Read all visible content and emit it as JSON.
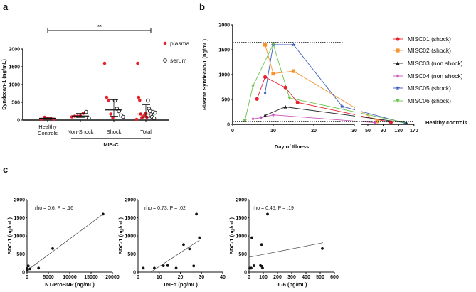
{
  "panel_labels": {
    "a": "a",
    "b": "b",
    "c": "c"
  },
  "chart_data": [
    {
      "panel": "a",
      "type": "scatter",
      "ylabel": "Syndecan-1 (ng/mL)",
      "ylim": [
        0,
        2000
      ],
      "yticks": [
        0,
        500,
        1000,
        1500,
        2000
      ],
      "categories": [
        "Healthy Controls",
        "Non-Shock",
        "Shock",
        "Total"
      ],
      "group_label": "MIS-C",
      "significance": "**",
      "legend": [
        {
          "name": "plasma",
          "color": "#e8202a",
          "filled": true
        },
        {
          "name": "serum",
          "color": "#111111",
          "filled": false
        }
      ],
      "groups": [
        {
          "plasma": [
            20,
            80,
            50,
            55,
            25
          ],
          "serum": [],
          "median": 50,
          "iqr": [
            25,
            60
          ]
        },
        {
          "plasma": [
            90,
            110,
            110,
            120,
            190
          ],
          "serum": [
            230,
            50
          ],
          "median": 115,
          "iqr": [
            75,
            190
          ]
        },
        {
          "plasma": [
            1600,
            640,
            560,
            170,
            70
          ],
          "serum": [
            550,
            320,
            250,
            130,
            90
          ],
          "median": 285,
          "iqr": [
            110,
            570
          ]
        },
        {
          "plasma": [
            20,
            1600,
            640,
            560,
            170,
            70,
            90,
            110,
            120,
            190,
            80
          ],
          "serum": [
            550,
            320,
            250,
            130,
            90,
            230,
            50,
            210
          ],
          "median": 170,
          "iqr": [
            80,
            430
          ]
        }
      ]
    },
    {
      "panel": "b",
      "type": "line",
      "xlabel": "Day of Illness",
      "ylabel": "Plasma Syndecan-1 (ng/mL)",
      "ylim": [
        0,
        2000
      ],
      "yticks": [
        0,
        500,
        1000,
        1500,
        2000
      ],
      "xticks": [
        0,
        10,
        20,
        30,
        50,
        90,
        130,
        170
      ],
      "x_axis_break": [
        30,
        33
      ],
      "reference_lines": [
        {
          "value": 1650,
          "label": ""
        },
        {
          "value": 50,
          "label": "Healthy controls"
        }
      ],
      "series": [
        {
          "name": "MISC01 (shock)",
          "color": "#e8202a",
          "marker": "circle",
          "x": [
            6,
            8,
            13,
            16,
            110
          ],
          "y": [
            510,
            950,
            740,
            440,
            40
          ]
        },
        {
          "name": "MISC02 (shock)",
          "color": "#f5932e",
          "marker": "square",
          "x": [
            8,
            10,
            15,
            75
          ],
          "y": [
            1600,
            1020,
            1070,
            60
          ]
        },
        {
          "name": "MISC03 (non shock)",
          "color": "#222222",
          "marker": "triangle",
          "x": [
            8,
            13,
            150
          ],
          "y": [
            180,
            350,
            30
          ]
        },
        {
          "name": "MISC04 (non shock)",
          "color": "#c855b8",
          "marker": "diamond",
          "x": [
            5,
            7,
            10,
            68
          ],
          "y": [
            110,
            135,
            190,
            35
          ]
        },
        {
          "name": "MISC05 (shock)",
          "color": "#3e5fbf",
          "marker": "star",
          "x": [
            8,
            10,
            15,
            27,
            145
          ],
          "y": [
            640,
            1600,
            1600,
            360,
            30
          ]
        },
        {
          "name": "MISC06 (shock)",
          "color": "#6cc24a",
          "marker": "triangle-down",
          "x": [
            3,
            5,
            10,
            14,
            143
          ],
          "y": [
            70,
            770,
            1610,
            530,
            40
          ]
        }
      ]
    },
    {
      "panel": "c1",
      "type": "scatter",
      "xlabel": "NT-ProBNP (ng/mL)",
      "ylabel": "SDC-1 (ng/mL)",
      "xlim": [
        0,
        20000
      ],
      "ylim": [
        0,
        2000
      ],
      "xticks": [
        0,
        5000,
        10000,
        15000,
        20000
      ],
      "yticks": [
        0,
        500,
        1000,
        1500,
        2000
      ],
      "annotation": "rho = 0.6, P = .16",
      "points": [
        [
          0,
          100
        ],
        [
          100,
          60
        ],
        [
          300,
          170
        ],
        [
          700,
          90
        ],
        [
          2700,
          110
        ],
        [
          6000,
          650
        ],
        [
          17800,
          1600
        ]
      ],
      "fit": [
        [
          300,
          70
        ],
        [
          17800,
          1600
        ]
      ]
    },
    {
      "panel": "c2",
      "type": "scatter",
      "xlabel": "TNFα (pg/mL)",
      "ylabel": "SDC-1 (ng/mL)",
      "xlim": [
        0,
        40
      ],
      "ylim": [
        0,
        2000
      ],
      "xticks": [
        0,
        10,
        20,
        30,
        40
      ],
      "yticks": [
        0,
        500,
        1000,
        1500,
        2000
      ],
      "annotation": "rho = 0.73, P = .02",
      "points": [
        [
          2.5,
          110
        ],
        [
          7.7,
          110
        ],
        [
          12,
          175
        ],
        [
          14,
          180
        ],
        [
          18,
          110
        ],
        [
          21.5,
          760
        ],
        [
          24.3,
          640
        ],
        [
          26.3,
          170
        ],
        [
          27.6,
          1600
        ],
        [
          29,
          950
        ]
      ],
      "fit": [
        [
          6,
          0
        ],
        [
          29,
          880
        ]
      ]
    },
    {
      "panel": "c3",
      "type": "scatter",
      "xlabel": "IL-6 (pg/mL)",
      "ylabel": "SDC-1 (ng/mL)",
      "xlim": [
        0,
        600
      ],
      "ylim": [
        0,
        2000
      ],
      "xticks": [
        0,
        100,
        200,
        300,
        400,
        500,
        600
      ],
      "yticks": [
        0,
        500,
        1000,
        1500,
        2000
      ],
      "annotation": "rho = 0.45, P = .19",
      "points": [
        [
          5,
          110
        ],
        [
          10,
          110
        ],
        [
          15,
          110
        ],
        [
          20,
          950
        ],
        [
          35,
          175
        ],
        [
          80,
          180
        ],
        [
          88,
          760
        ],
        [
          90,
          160
        ],
        [
          95,
          110
        ],
        [
          130,
          1600
        ],
        [
          515,
          650
        ]
      ],
      "fit": [
        [
          0,
          410
        ],
        [
          520,
          810
        ]
      ]
    }
  ]
}
